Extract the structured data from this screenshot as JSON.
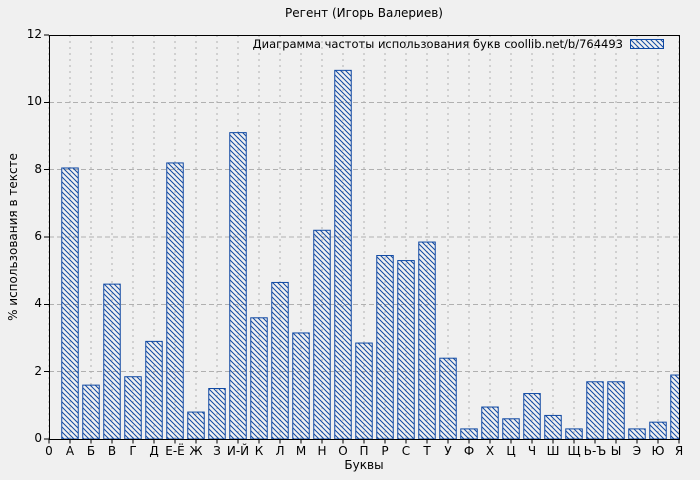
{
  "window": {
    "background": "#f0f0f0"
  },
  "chart_data": {
    "type": "bar",
    "title": "Регент (Игорь Валериев)",
    "legend": "Диаграмма частоты использования букв coollib.net/b/764493",
    "xlabel": "Буквы",
    "ylabel": "% использования в тексте",
    "x_origin_label": "0",
    "categories": [
      "А",
      "Б",
      "В",
      "Г",
      "Д",
      "Е-Ё",
      "Ж",
      "З",
      "И-Й",
      "К",
      "Л",
      "М",
      "Н",
      "О",
      "П",
      "Р",
      "С",
      "Т",
      "У",
      "Ф",
      "Х",
      "Ц",
      "Ч",
      "Ш",
      "Щ",
      "Ь-Ъ",
      "Ы",
      "Э",
      "Ю",
      "Я"
    ],
    "values": [
      8.05,
      1.6,
      4.6,
      1.85,
      2.9,
      8.2,
      0.8,
      1.5,
      9.1,
      3.6,
      4.65,
      3.15,
      6.2,
      10.95,
      2.85,
      5.45,
      5.3,
      5.85,
      2.4,
      0.3,
      0.95,
      0.6,
      1.35,
      0.7,
      0.3,
      1.7,
      1.7,
      0.3,
      0.5,
      1.9
    ],
    "yticks": [
      0,
      2,
      4,
      6,
      8,
      10,
      12
    ],
    "ylim": [
      0,
      12
    ],
    "grid": true,
    "legend_position": "top-right",
    "bar_style": "hatched",
    "last_bar_clipped": true,
    "colors": {
      "bar": "#1049a3",
      "grid": "#b0b0b0",
      "axis": "#000000",
      "background": "#f0f0f0",
      "text": "#000000"
    }
  }
}
